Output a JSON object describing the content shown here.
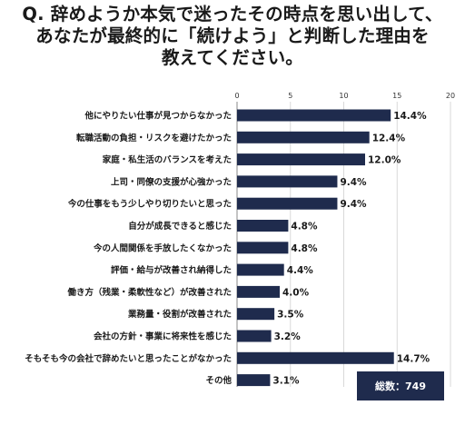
{
  "title_lines": [
    "Q. 辞めようか本気で迷ったその時点を思い出して、",
    "あなたが最終的に「続けよう」と判断した理由を",
    "教えてください。"
  ],
  "total_label": "総数：749",
  "colors": {
    "bar": "#1f2b4d",
    "grid": "#d9d9d9",
    "axis": "#888888"
  },
  "chart_data": {
    "type": "bar",
    "orientation": "horizontal",
    "title": "Q. 辞めようか本気で迷ったその時点を思い出して、あなたが最終的に「続けよう」と判断した理由を教えてください。",
    "xlim": [
      0,
      20
    ],
    "xticks": [
      0,
      5,
      10,
      15,
      20
    ],
    "grid": true,
    "unit": "%",
    "categories": [
      "他にやりたい仕事が見つからなかった",
      "転職活動の負担・リスクを避けたかった",
      "家庭・私生活のバランスを考えた",
      "上司・同僚の支援が心強かった",
      "今の仕事をもう少しやり切りたいと思った",
      "自分が成長できると感じた",
      "今の人間関係を手放したくなかった",
      "評価・給与が改善され納得した",
      "働き方（残業・柔軟性など）が改善された",
      "業務量・役割が改善された",
      "会社の方針・事業に将来性を感じた",
      "そもそも今の会社で辞めたいと思ったことがなかった",
      "その他"
    ],
    "values": [
      14.4,
      12.4,
      12.0,
      9.4,
      9.4,
      4.8,
      4.8,
      4.4,
      4.0,
      3.5,
      3.2,
      14.7,
      3.1
    ],
    "value_labels": [
      "14.4%",
      "12.4%",
      "12.0%",
      "9.4%",
      "9.4%",
      "4.8%",
      "4.8%",
      "4.4%",
      "4.0%",
      "3.5%",
      "3.2%",
      "14.7%",
      "3.1%"
    ]
  }
}
